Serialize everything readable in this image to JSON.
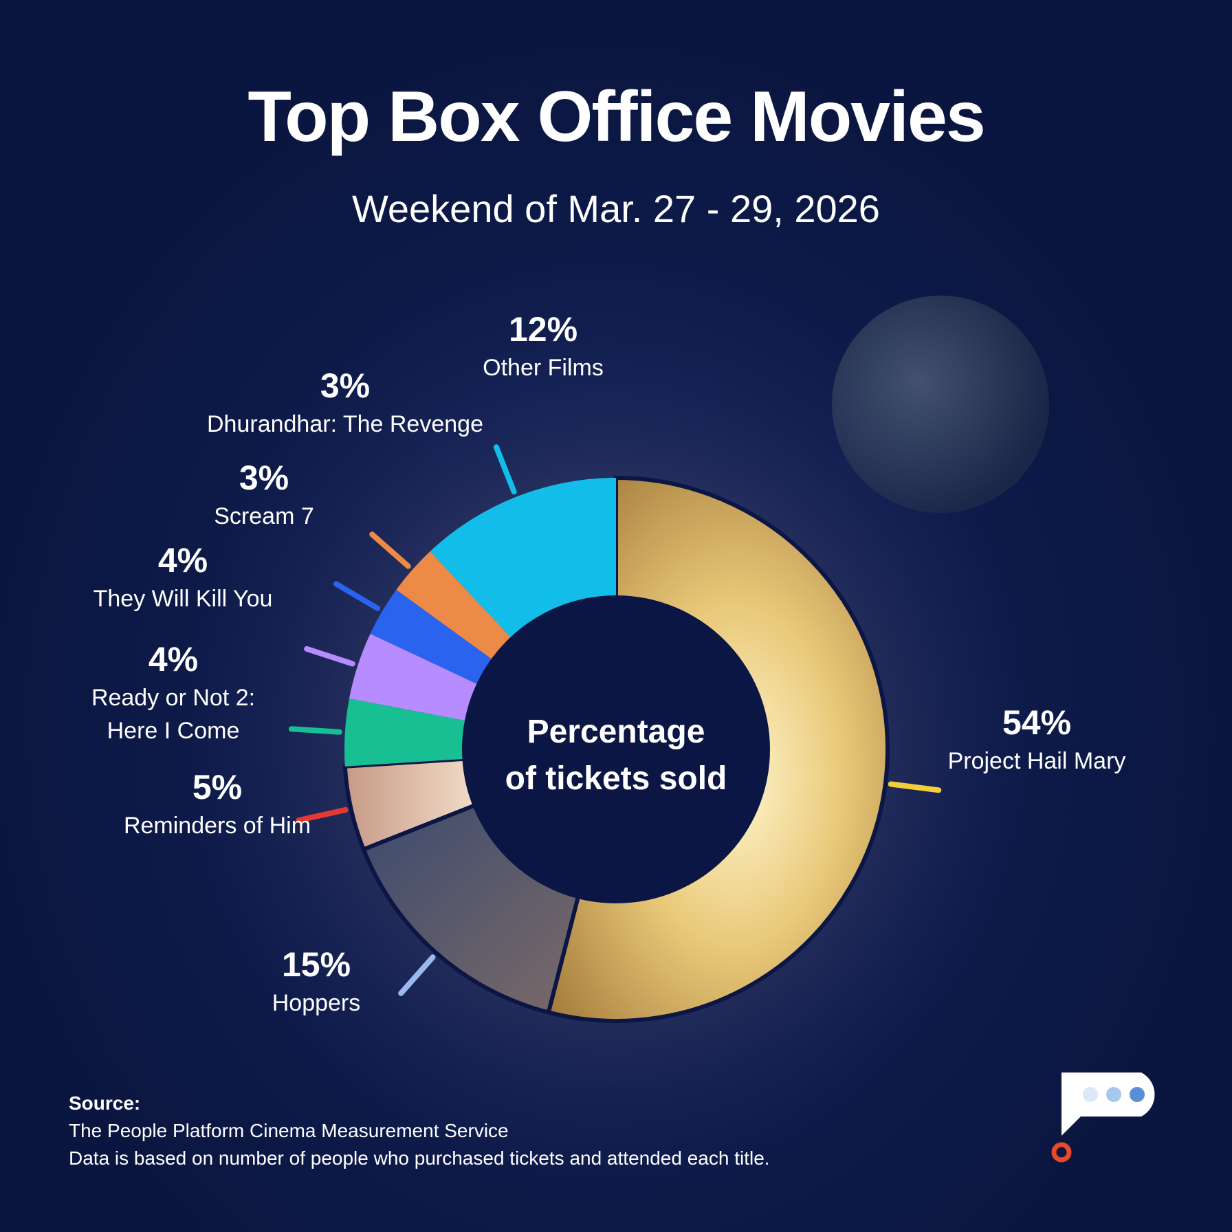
{
  "header": {
    "title": "Top Box Office Movies",
    "subtitle": "Weekend of Mar. 27 - 29, 2026"
  },
  "chart_data": {
    "type": "pie",
    "variant": "donut",
    "title": "Top Box Office Movies",
    "subtitle": "Weekend of Mar. 27 - 29, 2026",
    "center_label": [
      "Percentage",
      "of tickets sold"
    ],
    "unit": "%",
    "slices": [
      {
        "label": "Project Hail Mary",
        "value": 54,
        "display": "54%",
        "color": "#f2cf3a"
      },
      {
        "label": "Hoppers",
        "value": 15,
        "display": "15%",
        "color": "#9cb8f0"
      },
      {
        "label": "Reminders of Him",
        "value": 5,
        "display": "5%",
        "color": "#e23a33"
      },
      {
        "label": "Ready or Not 2:",
        "label_line2": "Here I Come",
        "value": 4,
        "display": "4%",
        "color": "#17bf92"
      },
      {
        "label": "They Will Kill You",
        "value": 4,
        "display": "4%",
        "color": "#b78cff"
      },
      {
        "label": "Scream 7",
        "value": 3,
        "display": "3%",
        "color": "#2a64ee"
      },
      {
        "label": "Dhurandhar: The Revenge",
        "value": 3,
        "display": "3%",
        "color": "#ee8a48"
      },
      {
        "label": "Other Films",
        "value": 12,
        "display": "12%",
        "color": "#12bde9"
      }
    ]
  },
  "source": {
    "heading": "Source:",
    "line1": "The People Platform Cinema Measurement Service",
    "line2": "Data is based on number of people who purchased tickets and attended each title."
  }
}
